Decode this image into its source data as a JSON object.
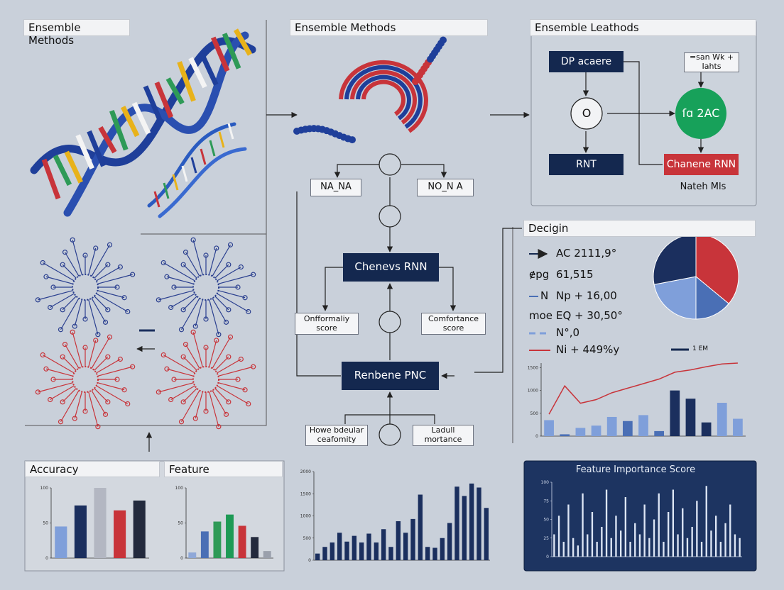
{
  "dna_panel": {
    "title": "Ensemble Methods"
  },
  "flow": {
    "title": "Ensemble Methods",
    "left_top": "NA_NA",
    "right_top": "NO_N A",
    "center": "Chenevs RNN",
    "left_score": "Onfformaliy score",
    "right_score": "Comfortance score",
    "bottom_center": "Renbene PNC",
    "bottom_left": "Howe bdeular ceafomity",
    "bottom_right": "Ladull mortance"
  },
  "right_panel": {
    "title": "Ensemble Leathods",
    "top_box": "DP acaere",
    "note": "=san Wk + Iahts",
    "node": "O",
    "green_node": "ſɑ 2AC",
    "bottom_box": "RNT",
    "red_box": "Chanene RNN",
    "caption": "Nateh Mls"
  },
  "design": {
    "title": "Decigin",
    "legend": [
      {
        "label": "AC 2111,9°"
      },
      {
        "prefix": "ɇpg",
        "label": "61,515"
      },
      {
        "prefix": "N",
        "label": "Np + 16,00"
      },
      {
        "prefix": "moe",
        "label": "EQ + 30,50°"
      },
      {
        "label": "N°,0"
      },
      {
        "label": "Ni + 449%y"
      }
    ],
    "key": "1 EM"
  },
  "bottom": {
    "accuracy_title": "Accuracy",
    "feature_title": "Feature"
  },
  "chart_data": [
    {
      "type": "pie",
      "values": [
        36,
        14,
        22,
        28
      ],
      "colors": [
        "#c8343a",
        "#4a6fb5",
        "#7f9fda",
        "#1b2f5e"
      ]
    },
    {
      "type": "bar",
      "values": [
        350,
        40,
        180,
        230,
        420,
        330,
        460,
        110,
        1000,
        820,
        300,
        730,
        380
      ],
      "colors": [
        "#7f9fda",
        "#4a6fb5",
        "#7f9fda",
        "#7f9fda",
        "#7f9fda",
        "#4a6fb5",
        "#7f9fda",
        "#4a6fb5",
        "#1b2f5e",
        "#1b2f5e",
        "#1b2f5e",
        "#7f9fda",
        "#7f9fda"
      ],
      "line_values": [
        480,
        1100,
        720,
        800,
        950,
        1050,
        1150,
        1250,
        1400,
        1450,
        1520,
        1580,
        1600
      ],
      "line_color": "#c8343a",
      "ylim": [
        0,
        1600
      ],
      "yticks": [
        0,
        500,
        1000,
        1500
      ]
    },
    {
      "type": "bar",
      "values": [
        45,
        75,
        100,
        68,
        82
      ],
      "colors": [
        "#7f9fda",
        "#1b2f5e",
        "#b3b7c2",
        "#c8343a",
        "#232a3d"
      ],
      "ylim": [
        0,
        100
      ],
      "yticks": [
        0,
        50,
        100
      ]
    },
    {
      "type": "bar",
      "values": [
        8,
        38,
        52,
        62,
        46,
        30,
        10
      ],
      "colors": [
        "#8fa8d8",
        "#4a6fb5",
        "#2e9a57",
        "#1d9a55",
        "#c8343a",
        "#232a3d",
        "#9aa0ac"
      ],
      "ylim": [
        0,
        100
      ],
      "yticks": [
        0,
        50,
        100
      ]
    },
    {
      "type": "bar",
      "values": [
        150,
        300,
        400,
        620,
        420,
        550,
        400,
        600,
        400,
        700,
        300,
        880,
        620,
        930,
        1480,
        300,
        280,
        500,
        840,
        1660,
        1450,
        1730,
        1640,
        1180
      ],
      "color": "#1b2f5e",
      "ylim": [
        0,
        2000
      ],
      "yticks": [
        0,
        500,
        1000,
        1500,
        2000
      ]
    },
    {
      "type": "bar",
      "title": "Feature Importance Score",
      "values": [
        30,
        55,
        20,
        70,
        25,
        15,
        85,
        30,
        60,
        20,
        40,
        90,
        25,
        55,
        35,
        80,
        20,
        45,
        30,
        70,
        25,
        50,
        85,
        20,
        60,
        90,
        30,
        65,
        25,
        40,
        75,
        20,
        95,
        35,
        55,
        20,
        45,
        70,
        30,
        25
      ],
      "color": "#dde6f5",
      "ylim": [
        0,
        100
      ],
      "yticks": [
        0,
        25,
        50,
        75,
        100
      ]
    }
  ]
}
